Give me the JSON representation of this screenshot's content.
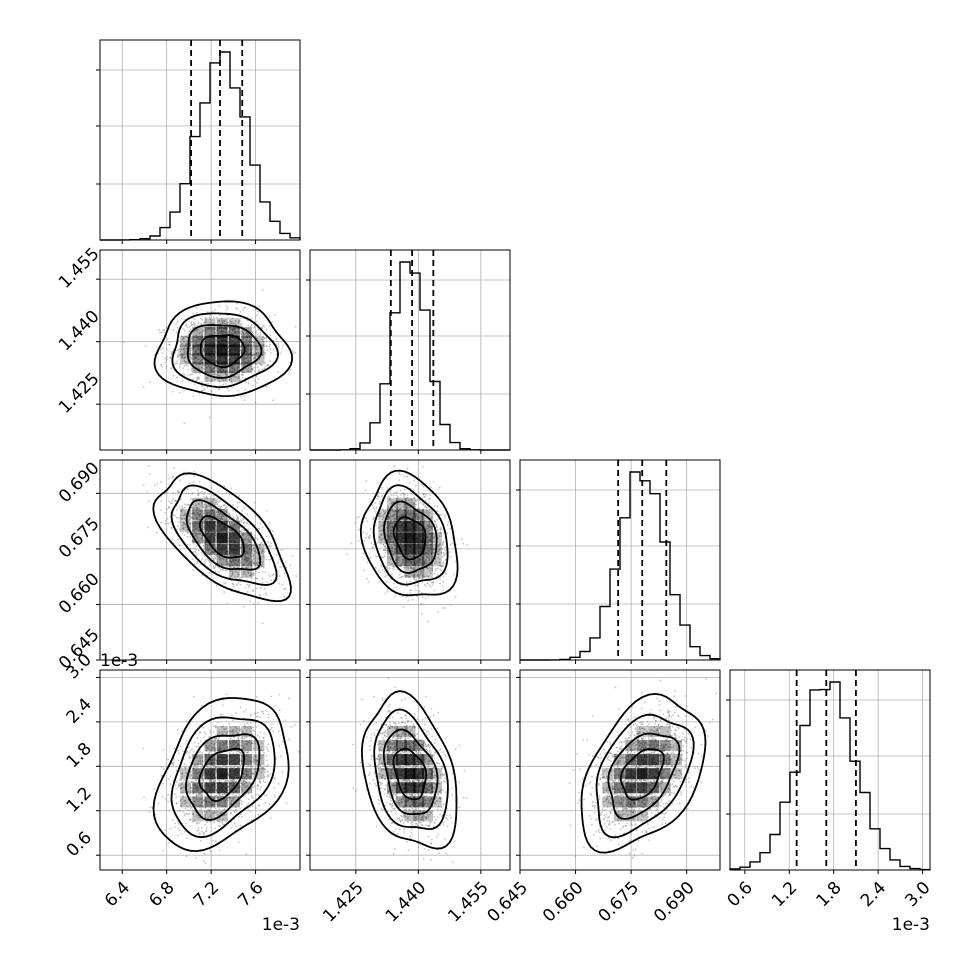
{
  "chart_data": {
    "type": "corner",
    "title": "",
    "parameters": [
      {
        "range": [
          6.2,
          8.0
        ],
        "ticks": [
          "6.4",
          "6.8",
          "7.2",
          "7.6"
        ],
        "tick_values": [
          6.4,
          6.8,
          7.2,
          7.6
        ],
        "offset_label": "1e-3",
        "mean": 7.3,
        "sd": 0.22,
        "quantiles": [
          7.02,
          7.28,
          7.48
        ]
      },
      {
        "range": [
          1.414,
          1.462
        ],
        "ticks": [
          "1.425",
          "1.440",
          "1.455"
        ],
        "tick_values": [
          1.425,
          1.44,
          1.455
        ],
        "offset_label": "",
        "mean": 1.438,
        "sd": 0.0042,
        "quantiles": [
          1.4334,
          1.4385,
          1.4436
        ]
      },
      {
        "range": [
          0.645,
          0.699
        ],
        "ticks": [
          "0.645",
          "0.660",
          "0.675",
          "0.690"
        ],
        "tick_values": [
          0.645,
          0.66,
          0.675,
          0.69
        ],
        "offset_label": "",
        "mean": 0.678,
        "sd": 0.0062,
        "quantiles": [
          0.6715,
          0.678,
          0.6845
        ]
      },
      {
        "range": [
          0.4,
          3.1
        ],
        "ticks": [
          "0.6",
          "1.2",
          "1.8",
          "2.4",
          "3.0"
        ],
        "tick_values": [
          0.6,
          1.2,
          1.8,
          2.4,
          3.0
        ],
        "offset_label": "1e-3",
        "mean": 1.7,
        "sd": 0.38,
        "quantiles": [
          1.3,
          1.7,
          2.1
        ]
      }
    ],
    "correlations": [
      {
        "i": 1,
        "j": 0,
        "rho": 0.0
      },
      {
        "i": 2,
        "j": 0,
        "rho": -0.6
      },
      {
        "i": 2,
        "j": 1,
        "rho": -0.2
      },
      {
        "i": 3,
        "j": 0,
        "rho": 0.35
      },
      {
        "i": 3,
        "j": 1,
        "rho": -0.3
      },
      {
        "i": 3,
        "j": 2,
        "rho": 0.4
      }
    ],
    "histogram_bins": 20,
    "grid": true,
    "quantile_line_style": "dashed",
    "contour_levels": 4,
    "colors": {
      "line": "#000000",
      "grid": "#b0b0b0",
      "points": "#7f7f7f"
    }
  }
}
